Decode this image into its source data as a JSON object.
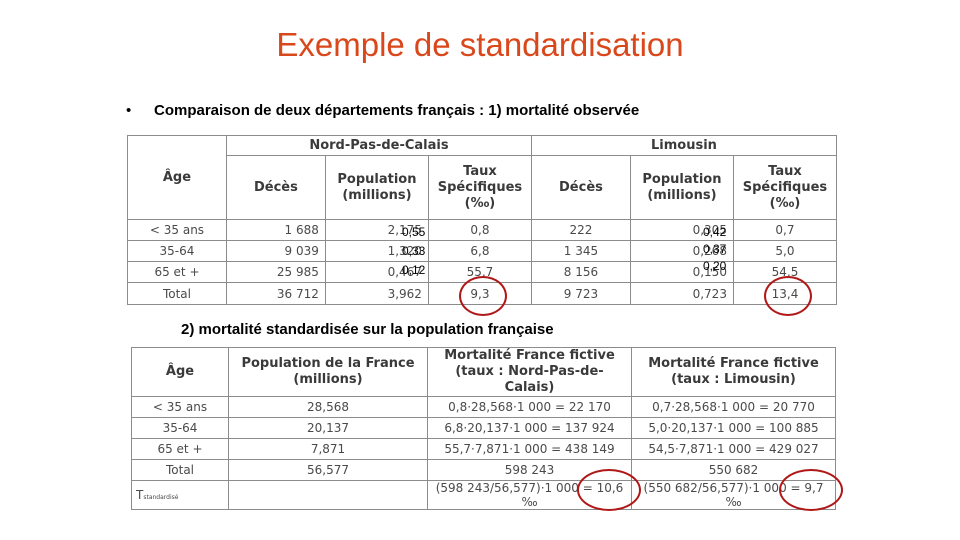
{
  "title": "Exemple de standardisation",
  "bullet": "•",
  "heading1": "Comparaison de deux départements français : 1) mortalité observée",
  "heading2": "2) mortalité standardisée sur la population française",
  "table1": {
    "age_header": "Âge",
    "group1": "Nord-Pas-de-Calais",
    "group2": "Limousin",
    "col_deces": "Décès",
    "col_population": "Population (millions)",
    "col_taux": "Taux Spécifiques (‰)",
    "rows": [
      {
        "age": "< 35 ans",
        "d1": "1 688",
        "p1": "2,175",
        "t1": "0,8",
        "d2": "222",
        "p2": "0,305",
        "t2": "0,7"
      },
      {
        "age": "35-64",
        "d1": "9 039",
        "p1": "1,320",
        "t1": "6,8",
        "d2": "1 345",
        "p2": "0,268",
        "t2": "5,0"
      },
      {
        "age": "65 et +",
        "d1": "25 985",
        "p1": "0,467",
        "t1": "55,7",
        "d2": "8 156",
        "p2": "0,150",
        "t2": "54,5"
      },
      {
        "age": "Total",
        "d1": "36 712",
        "p1": "3,962",
        "t1": "9,3",
        "d2": "9 723",
        "p2": "0,723",
        "t2": "13,4"
      }
    ],
    "overlay_left": [
      "0,55",
      "0,33",
      "0,12"
    ],
    "overlay_right": [
      "0,42",
      "0,37",
      "0,20"
    ]
  },
  "table2": {
    "age_header": "Âge",
    "col_pop": "Population de la France (millions)",
    "col_npdc": "Mortalité France fictive (taux : Nord-Pas-de-Calais)",
    "col_lim": "Mortalité France fictive (taux : Limousin)",
    "rows": [
      {
        "age": "< 35 ans",
        "pop": "28,568",
        "npdc": "0,8·28,568·1 000 = 22 170",
        "lim": "0,7·28,568·1 000 = 20 770"
      },
      {
        "age": "35-64",
        "pop": "20,137",
        "npdc": "6,8·20,137·1 000 = 137 924",
        "lim": "5,0·20,137·1 000 = 100 885"
      },
      {
        "age": "65 et +",
        "pop": "7,871",
        "npdc": "55,7·7,871·1 000 = 438 149",
        "lim": "54,5·7,871·1 000 = 429 027"
      },
      {
        "age": "Total",
        "pop": "56,577",
        "npdc": "598 243",
        "lim": "550 682"
      }
    ],
    "tstd_label": "T",
    "tstd_sub": "standardisé",
    "tstd_npdc": "(598 243/56,577)·1 000 = 10,6 ‰",
    "tstd_lim": "(550 682/56,577)·1 000 = 9,7 ‰"
  },
  "colors": {
    "title": "#d9471a",
    "circle": "#b01818"
  }
}
